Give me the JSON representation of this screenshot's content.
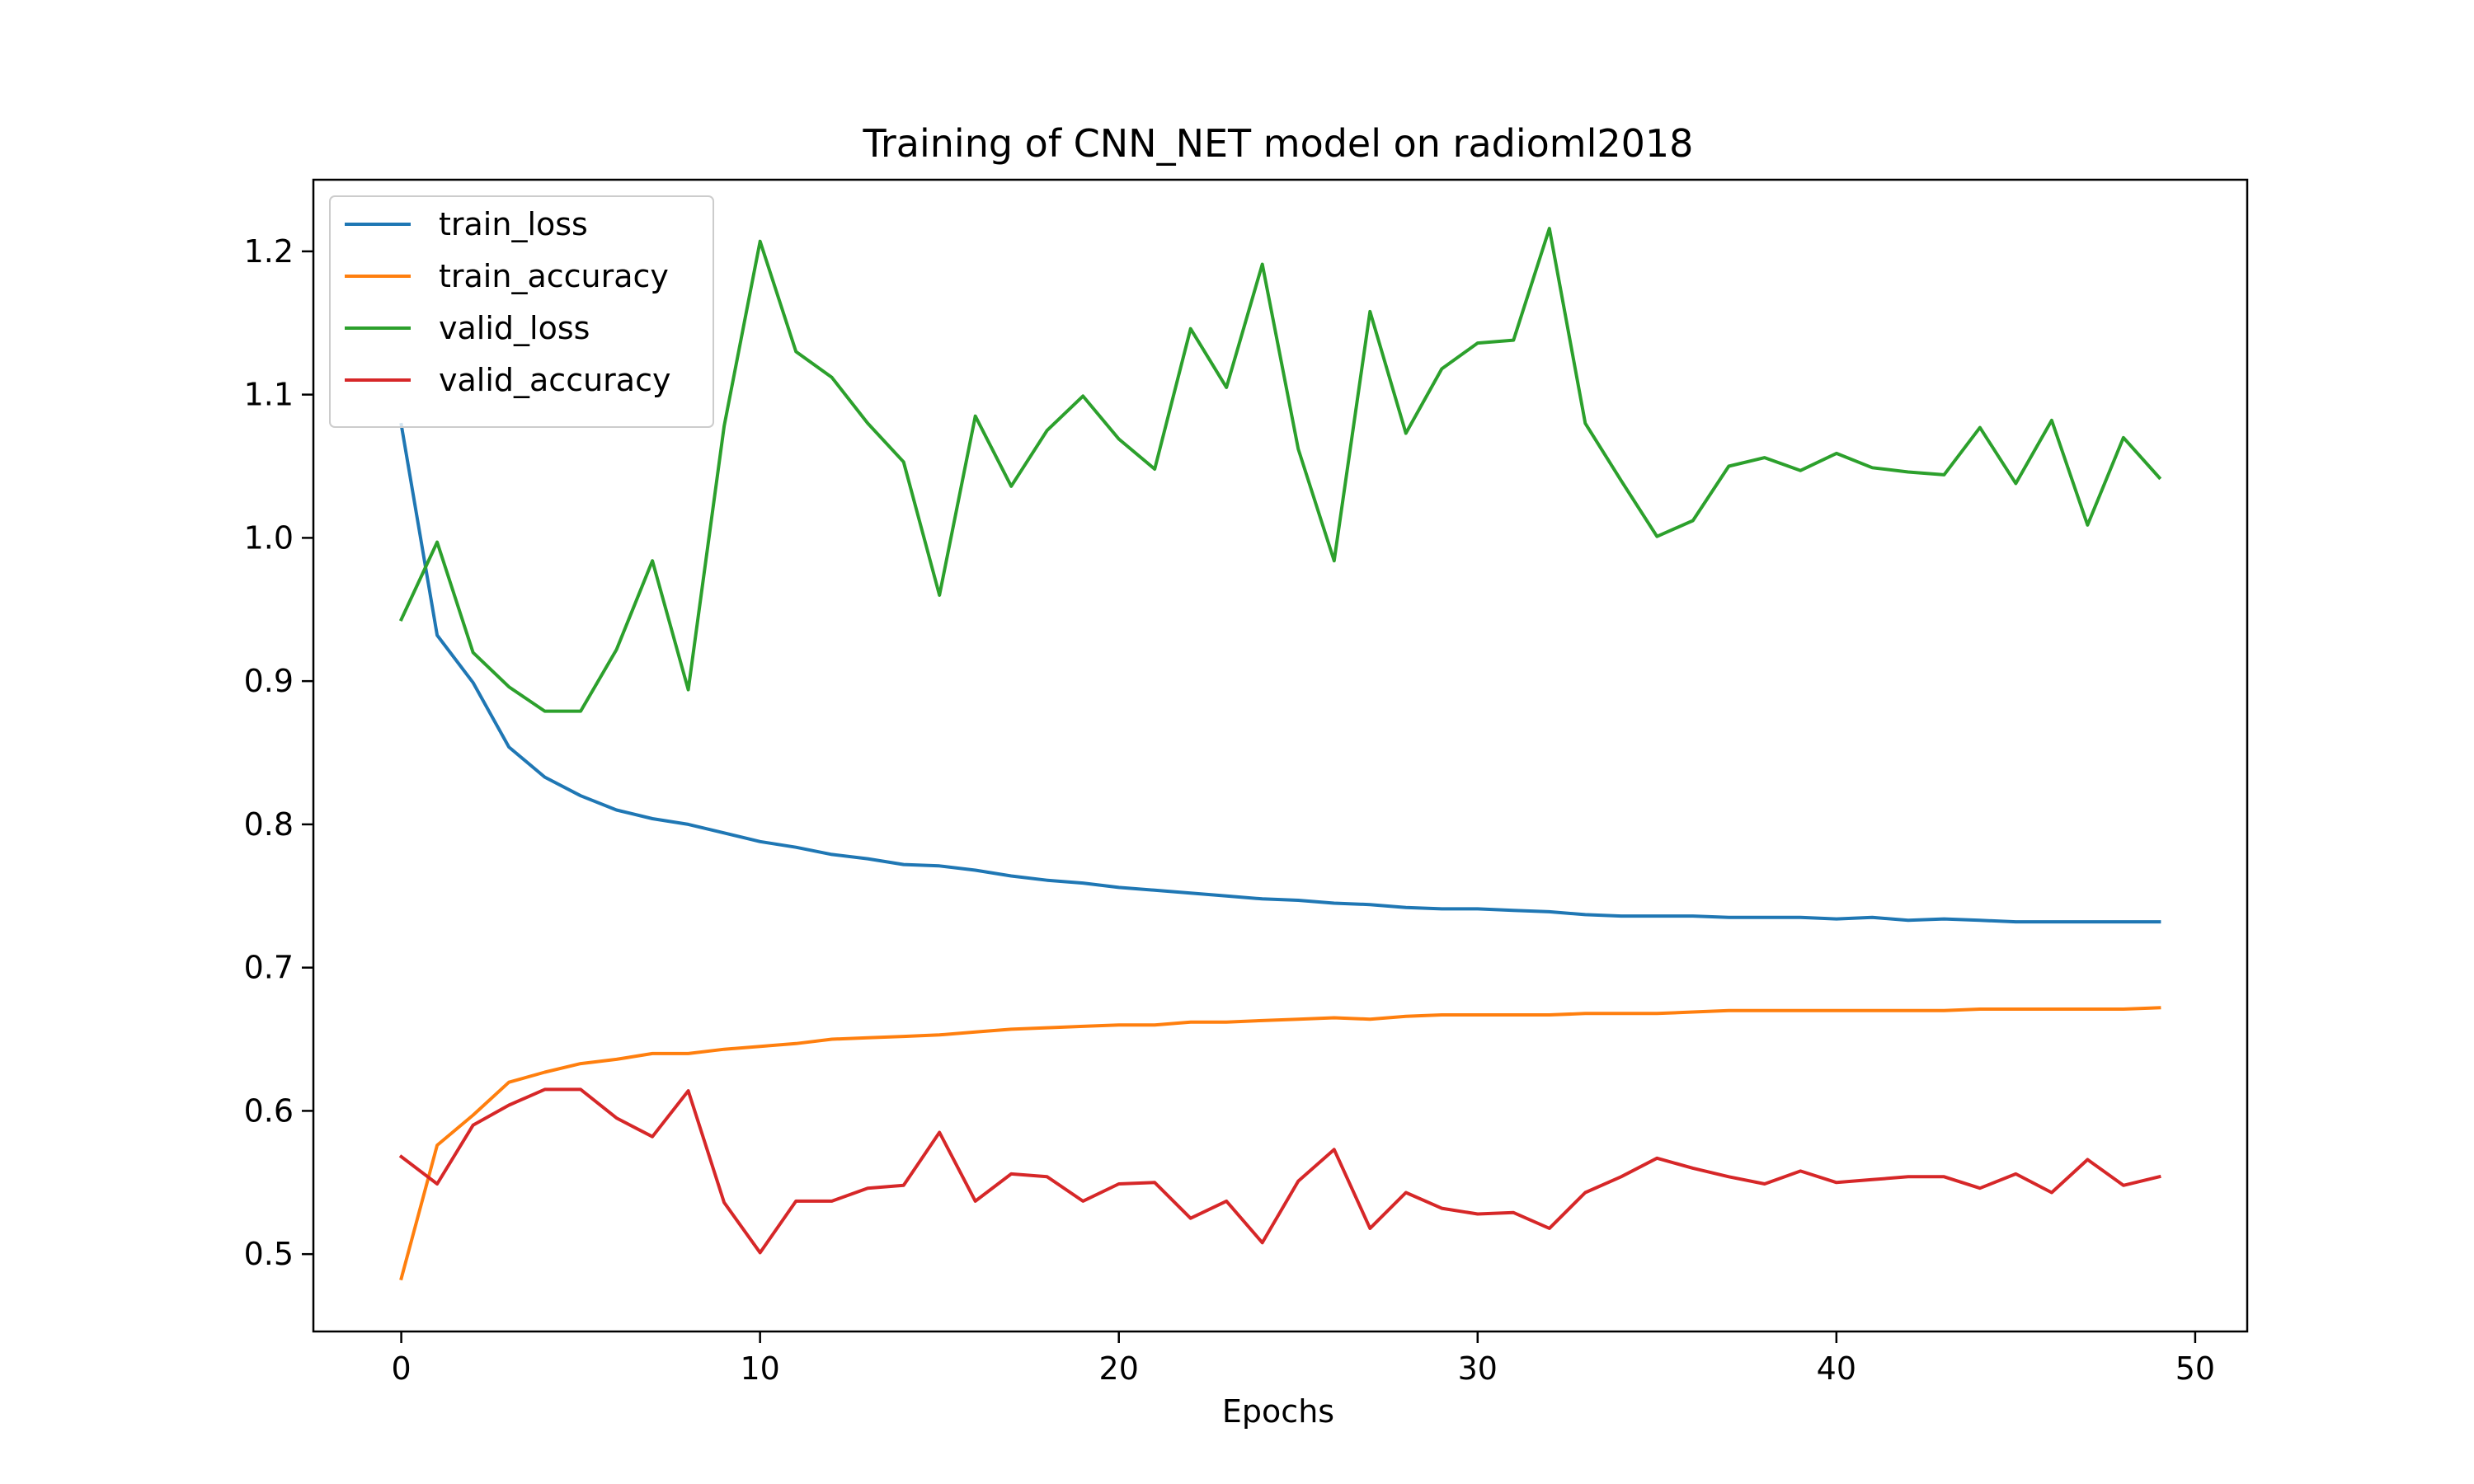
{
  "chart_data": {
    "type": "line",
    "title": "Training of CNN_NET model on radioml2018",
    "xlabel": "Epochs",
    "ylabel": "",
    "xlim": [
      -2.45,
      51.45
    ],
    "ylim": [
      0.446,
      1.25
    ],
    "xticks": [
      0,
      10,
      20,
      30,
      40,
      50
    ],
    "xtick_labels": [
      "0",
      "10",
      "20",
      "30",
      "40",
      "50"
    ],
    "yticks": [
      0.5,
      0.6,
      0.7,
      0.8,
      0.9,
      1.0,
      1.1,
      1.2
    ],
    "ytick_labels": [
      "0.5",
      "0.6",
      "0.7",
      "0.8",
      "0.9",
      "1.0",
      "1.1",
      "1.2"
    ],
    "grid": false,
    "legend_position": "top-left",
    "x": [
      0,
      1,
      2,
      3,
      4,
      5,
      6,
      7,
      8,
      9,
      10,
      11,
      12,
      13,
      14,
      15,
      16,
      17,
      18,
      19,
      20,
      21,
      22,
      23,
      24,
      25,
      26,
      27,
      28,
      29,
      30,
      31,
      32,
      33,
      34,
      35,
      36,
      37,
      38,
      39,
      40,
      41,
      42,
      43,
      44,
      45,
      46,
      47,
      48,
      49
    ],
    "series": [
      {
        "name": "train_loss",
        "color": "#1f77b4",
        "values": [
          1.079,
          0.932,
          0.899,
          0.854,
          0.833,
          0.82,
          0.81,
          0.804,
          0.8,
          0.794,
          0.788,
          0.784,
          0.779,
          0.776,
          0.772,
          0.771,
          0.768,
          0.764,
          0.761,
          0.759,
          0.756,
          0.754,
          0.752,
          0.75,
          0.748,
          0.747,
          0.745,
          0.744,
          0.742,
          0.741,
          0.741,
          0.74,
          0.739,
          0.737,
          0.736,
          0.736,
          0.736,
          0.735,
          0.735,
          0.735,
          0.734,
          0.735,
          0.733,
          0.734,
          0.733,
          0.732,
          0.732,
          0.732,
          0.732,
          0.732
        ]
      },
      {
        "name": "train_accuracy",
        "color": "#ff7f0e",
        "values": [
          0.483,
          0.576,
          0.597,
          0.62,
          0.627,
          0.633,
          0.636,
          0.64,
          0.64,
          0.643,
          0.645,
          0.647,
          0.65,
          0.651,
          0.652,
          0.653,
          0.655,
          0.657,
          0.658,
          0.659,
          0.66,
          0.66,
          0.662,
          0.662,
          0.663,
          0.664,
          0.665,
          0.664,
          0.666,
          0.667,
          0.667,
          0.667,
          0.667,
          0.668,
          0.668,
          0.668,
          0.669,
          0.67,
          0.67,
          0.67,
          0.67,
          0.67,
          0.67,
          0.67,
          0.671,
          0.671,
          0.671,
          0.671,
          0.671,
          0.672
        ]
      },
      {
        "name": "valid_loss",
        "color": "#2ca02c",
        "values": [
          0.943,
          0.997,
          0.92,
          0.896,
          0.879,
          0.879,
          0.922,
          0.984,
          0.894,
          1.078,
          1.207,
          1.13,
          1.112,
          1.08,
          1.053,
          0.96,
          1.085,
          1.036,
          1.075,
          1.099,
          1.069,
          1.048,
          1.146,
          1.105,
          1.191,
          1.062,
          0.984,
          1.158,
          1.073,
          1.118,
          1.136,
          1.138,
          1.216,
          1.08,
          1.04,
          1.001,
          1.012,
          1.05,
          1.056,
          1.047,
          1.059,
          1.049,
          1.046,
          1.044,
          1.077,
          1.038,
          1.082,
          1.009,
          1.07,
          1.042
        ]
      },
      {
        "name": "valid_accuracy",
        "color": "#d62728",
        "values": [
          0.568,
          0.549,
          0.59,
          0.604,
          0.615,
          0.615,
          0.595,
          0.582,
          0.614,
          0.536,
          0.501,
          0.537,
          0.537,
          0.546,
          0.548,
          0.585,
          0.537,
          0.556,
          0.554,
          0.537,
          0.549,
          0.55,
          0.525,
          0.537,
          0.508,
          0.551,
          0.573,
          0.518,
          0.543,
          0.532,
          0.528,
          0.529,
          0.518,
          0.543,
          0.554,
          0.567,
          0.56,
          0.554,
          0.549,
          0.558,
          0.55,
          0.552,
          0.554,
          0.554,
          0.546,
          0.556,
          0.543,
          0.566,
          0.548,
          0.554
        ]
      }
    ]
  }
}
